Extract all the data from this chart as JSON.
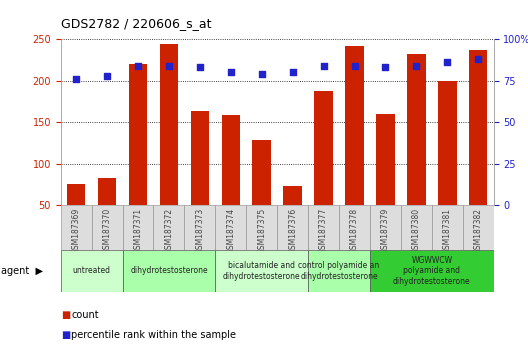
{
  "title": "GDS2782 / 220606_s_at",
  "samples": [
    "GSM187369",
    "GSM187370",
    "GSM187371",
    "GSM187372",
    "GSM187373",
    "GSM187374",
    "GSM187375",
    "GSM187376",
    "GSM187377",
    "GSM187378",
    "GSM187379",
    "GSM187380",
    "GSM187381",
    "GSM187382"
  ],
  "counts": [
    76,
    83,
    220,
    244,
    163,
    158,
    128,
    73,
    188,
    242,
    160,
    232,
    200,
    237
  ],
  "percentile_ranks": [
    76,
    78,
    84,
    84,
    83,
    80,
    79,
    80,
    84,
    84,
    83,
    84,
    86,
    88
  ],
  "bar_color": "#cc2200",
  "dot_color": "#2222cc",
  "ylim_left": [
    50,
    250
  ],
  "ylim_right": [
    0,
    100
  ],
  "left_ticks": [
    50,
    100,
    150,
    200,
    250
  ],
  "right_ticks": [
    0,
    25,
    50,
    75,
    100
  ],
  "agent_groups": [
    {
      "label": "untreated",
      "indices": [
        0,
        1
      ],
      "color": "#ccffcc"
    },
    {
      "label": "dihydrotestosterone",
      "indices": [
        2,
        3,
        4
      ],
      "color": "#aaffaa"
    },
    {
      "label": "bicalutamide and\ndihydrotestosterone",
      "indices": [
        5,
        6,
        7
      ],
      "color": "#ccffcc"
    },
    {
      "label": "control polyamide an\ndihydrotestosterone",
      "indices": [
        8,
        9
      ],
      "color": "#aaffaa"
    },
    {
      "label": "WGWWCW\npolyamide and\ndihydrotestosterone",
      "indices": [
        10,
        11,
        12,
        13
      ],
      "color": "#33cc33"
    }
  ],
  "legend_count_label": "count",
  "legend_percentile_label": "percentile rank within the sample",
  "left_axis_color": "#cc2200",
  "right_axis_color": "#2222cc",
  "tick_label_color_x": "#444444"
}
